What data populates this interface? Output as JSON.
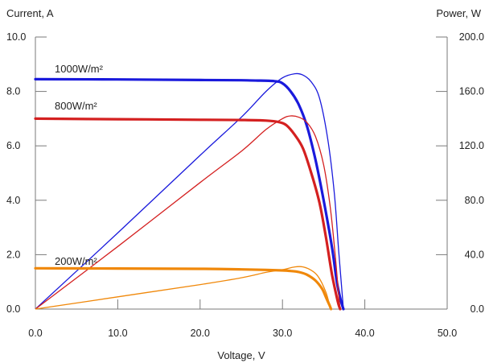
{
  "chart_data": {
    "type": "line",
    "xlabel": "Voltage, V",
    "ylabel_left": "Current, A",
    "ylabel_right": "Power, W",
    "xlim": [
      0,
      50
    ],
    "ylim_left": [
      0,
      10
    ],
    "ylim_right": [
      0,
      200
    ],
    "x_ticks": [
      "0.0",
      "10.0",
      "20.0",
      "30.0",
      "40.0",
      "50.0"
    ],
    "y_ticks_left": [
      "0.0",
      "2.0",
      "4.0",
      "6.0",
      "8.0",
      "10.0"
    ],
    "y_ticks_right": [
      "0.0",
      "40.0",
      "80.0",
      "120.0",
      "160.0",
      "200.0"
    ],
    "grid": false,
    "series": [
      {
        "name": "1000W/m²",
        "color": "#1a1adc",
        "current_axis": "left",
        "current": [
          [
            0,
            8.45
          ],
          [
            10,
            8.44
          ],
          [
            20,
            8.42
          ],
          [
            25,
            8.41
          ],
          [
            27,
            8.4
          ],
          [
            29,
            8.38
          ],
          [
            30,
            8.3
          ],
          [
            31,
            8.0
          ],
          [
            32,
            7.5
          ],
          [
            33,
            6.7
          ],
          [
            34,
            5.5
          ],
          [
            35,
            4.0
          ],
          [
            36,
            2.3
          ],
          [
            36.6,
            1.0
          ],
          [
            37.1,
            0.3
          ],
          [
            37.4,
            0
          ]
        ],
        "power": [
          [
            0,
            0
          ],
          [
            10,
            56
          ],
          [
            20,
            113
          ],
          [
            25,
            141
          ],
          [
            28,
            160
          ],
          [
            30,
            170
          ],
          [
            31.5,
            173
          ],
          [
            32.5,
            172
          ],
          [
            33.5,
            167
          ],
          [
            34.5,
            155
          ],
          [
            35.5,
            125
          ],
          [
            36.3,
            85
          ],
          [
            36.8,
            45
          ],
          [
            37.2,
            15
          ],
          [
            37.4,
            0
          ]
        ]
      },
      {
        "name": "800W/m²",
        "color": "#d42020",
        "current_axis": "left",
        "current": [
          [
            0,
            7.0
          ],
          [
            10,
            6.98
          ],
          [
            20,
            6.96
          ],
          [
            25,
            6.95
          ],
          [
            28,
            6.93
          ],
          [
            29.5,
            6.88
          ],
          [
            30.5,
            6.75
          ],
          [
            31.5,
            6.4
          ],
          [
            32.5,
            5.9
          ],
          [
            33.5,
            5.0
          ],
          [
            34.5,
            3.9
          ],
          [
            35.3,
            2.6
          ],
          [
            36,
            1.3
          ],
          [
            36.7,
            0.3
          ],
          [
            37,
            0
          ]
        ],
        "power": [
          [
            0,
            0
          ],
          [
            10,
            46
          ],
          [
            20,
            93
          ],
          [
            25,
            116
          ],
          [
            28,
            132
          ],
          [
            30,
            140
          ],
          [
            31,
            142
          ],
          [
            32,
            141
          ],
          [
            33,
            137
          ],
          [
            34,
            127
          ],
          [
            35,
            106
          ],
          [
            35.8,
            75
          ],
          [
            36.4,
            40
          ],
          [
            36.8,
            12
          ],
          [
            37,
            0
          ]
        ]
      },
      {
        "name": "200W/m²",
        "color": "#f0880a",
        "current_axis": "left",
        "current": [
          [
            0,
            1.5
          ],
          [
            10,
            1.49
          ],
          [
            20,
            1.48
          ],
          [
            25,
            1.46
          ],
          [
            28,
            1.44
          ],
          [
            30,
            1.42
          ],
          [
            31,
            1.4
          ],
          [
            32,
            1.36
          ],
          [
            33,
            1.26
          ],
          [
            34,
            1.05
          ],
          [
            34.8,
            0.75
          ],
          [
            35.3,
            0.42
          ],
          [
            35.7,
            0.15
          ],
          [
            35.9,
            0
          ]
        ],
        "power": [
          [
            0,
            0
          ],
          [
            10,
            9
          ],
          [
            20,
            18
          ],
          [
            25,
            23
          ],
          [
            28,
            27
          ],
          [
            30,
            29
          ],
          [
            31.5,
            31
          ],
          [
            32.5,
            31
          ],
          [
            33.5,
            28.5
          ],
          [
            34.2,
            25
          ],
          [
            34.8,
            19
          ],
          [
            35.3,
            12
          ],
          [
            35.6,
            6
          ],
          [
            35.9,
            0
          ]
        ]
      }
    ]
  }
}
